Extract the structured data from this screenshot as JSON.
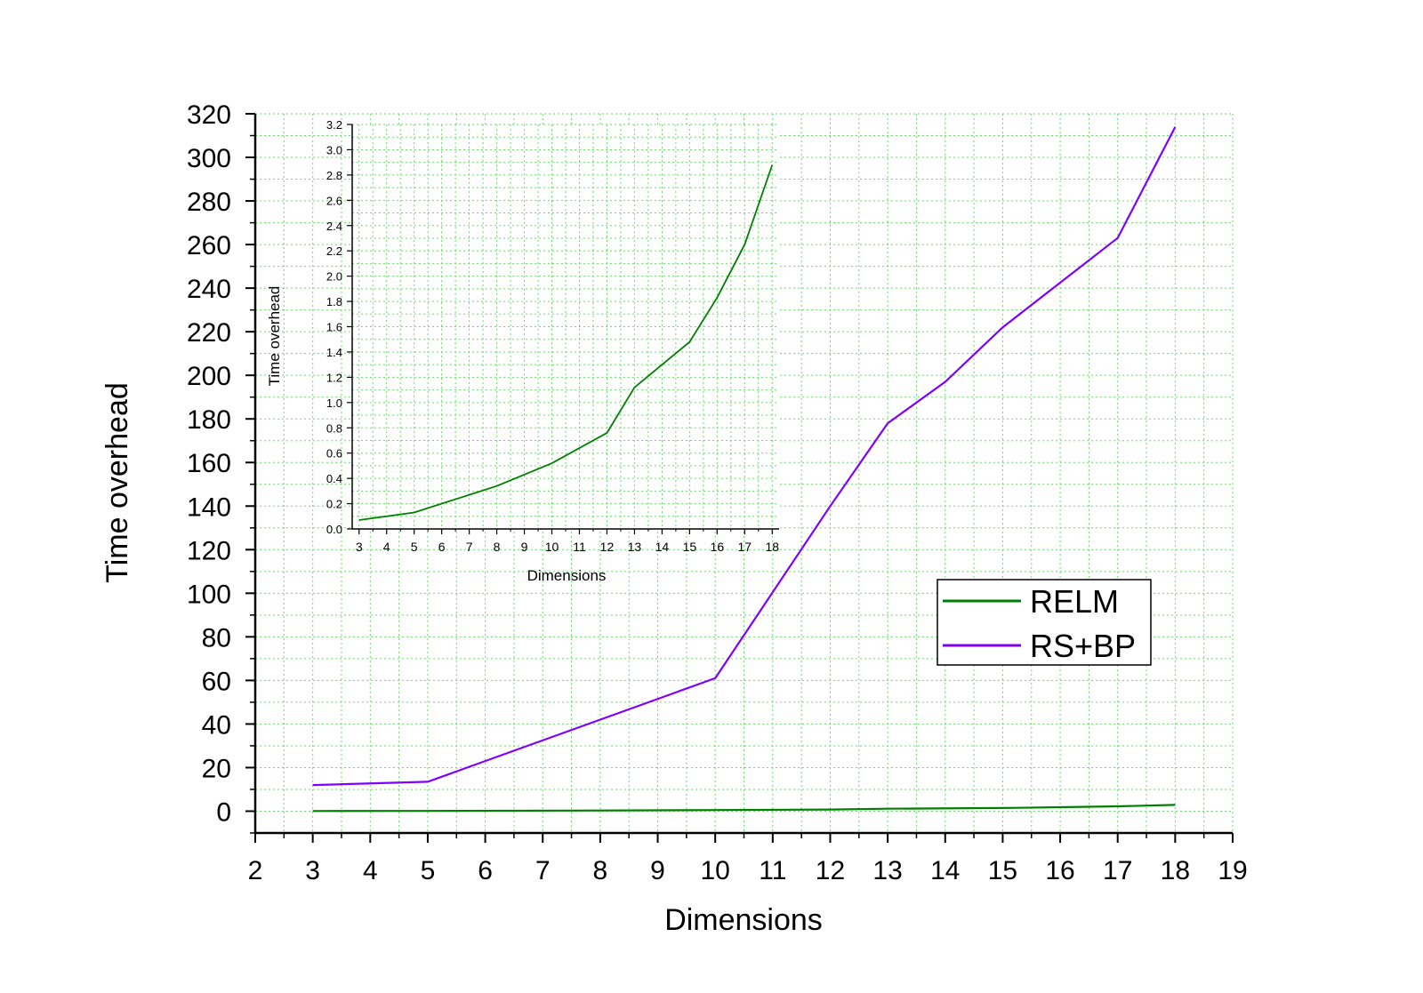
{
  "chart_data": [
    {
      "type": "line",
      "xlabel": "Dimensions",
      "ylabel": "Time overhead",
      "xlim": [
        2,
        19
      ],
      "ylim": [
        -10,
        320
      ],
      "xticks": [
        2,
        3,
        4,
        5,
        6,
        7,
        8,
        9,
        10,
        11,
        12,
        13,
        14,
        15,
        16,
        17,
        18,
        19
      ],
      "yticks": [
        0,
        20,
        40,
        60,
        80,
        100,
        120,
        140,
        160,
        180,
        200,
        220,
        240,
        260,
        280,
        300,
        320
      ],
      "grid": true,
      "legend_position": "right",
      "series": [
        {
          "name": "RELM",
          "color": "#007f00",
          "x": [
            3,
            5,
            8,
            10,
            12,
            13,
            15,
            16,
            17,
            18
          ],
          "y": [
            0.07,
            0.13,
            0.34,
            0.52,
            0.76,
            1.12,
            1.48,
            1.83,
            2.25,
            2.88
          ]
        },
        {
          "name": "RS+BP",
          "color": "#8000ff",
          "x": [
            3,
            5,
            10,
            12,
            13,
            14,
            15,
            17,
            18
          ],
          "y": [
            12,
            13.5,
            61,
            140,
            178,
            197,
            222,
            263,
            314
          ]
        }
      ]
    },
    {
      "type": "line",
      "xlabel": "Dimensions",
      "ylabel": "Time overhead",
      "xlim": [
        2.75,
        18.25
      ],
      "ylim": [
        0,
        3.2
      ],
      "xticks": [
        3,
        4,
        5,
        6,
        7,
        8,
        9,
        10,
        11,
        12,
        13,
        14,
        15,
        16,
        17,
        18
      ],
      "yticks": [
        "0.0",
        "0.2",
        "0.4",
        "0.6",
        "0.8",
        "1.0",
        "1.2",
        "1.4",
        "1.6",
        "1.8",
        "2.0",
        "2.2",
        "2.4",
        "2.6",
        "2.8",
        "3.0",
        "3.2"
      ],
      "grid": true,
      "series": [
        {
          "color": "#007f00",
          "x": [
            3,
            5,
            8,
            10,
            12,
            13,
            15,
            16,
            17,
            18
          ],
          "y": [
            0.07,
            0.13,
            0.34,
            0.52,
            0.76,
            1.12,
            1.48,
            1.83,
            2.25,
            2.88
          ]
        }
      ]
    }
  ]
}
